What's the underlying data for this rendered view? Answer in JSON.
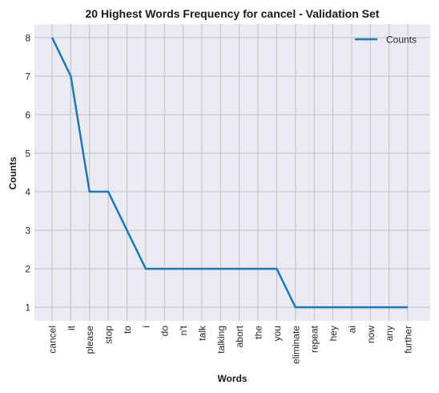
{
  "chart_data": {
    "type": "line",
    "title": "20 Highest Words Frequency for cancel - Validation Set",
    "xlabel": "Words",
    "ylabel": "Counts",
    "categories": [
      "cancel",
      "it",
      "please",
      "stop",
      "to",
      "i",
      "do",
      "n't",
      "talk",
      "talking",
      "abort",
      "the",
      "you",
      "eliminate",
      "repeat",
      "hey",
      "ai",
      "now",
      "any",
      "further"
    ],
    "series": [
      {
        "name": "Counts",
        "values": [
          8,
          7,
          4,
          4,
          3,
          2,
          2,
          2,
          2,
          2,
          2,
          2,
          2,
          1,
          1,
          1,
          1,
          1,
          1,
          1
        ]
      }
    ],
    "yticks": [
      1,
      2,
      3,
      4,
      5,
      6,
      7,
      8
    ],
    "ylim": [
      0.65,
      8.35
    ],
    "grid": true,
    "legend_position": "top-right",
    "colors": {
      "line": "#1f77b4",
      "background": "#eaeaf2",
      "grid": "#c0c0c0"
    }
  }
}
